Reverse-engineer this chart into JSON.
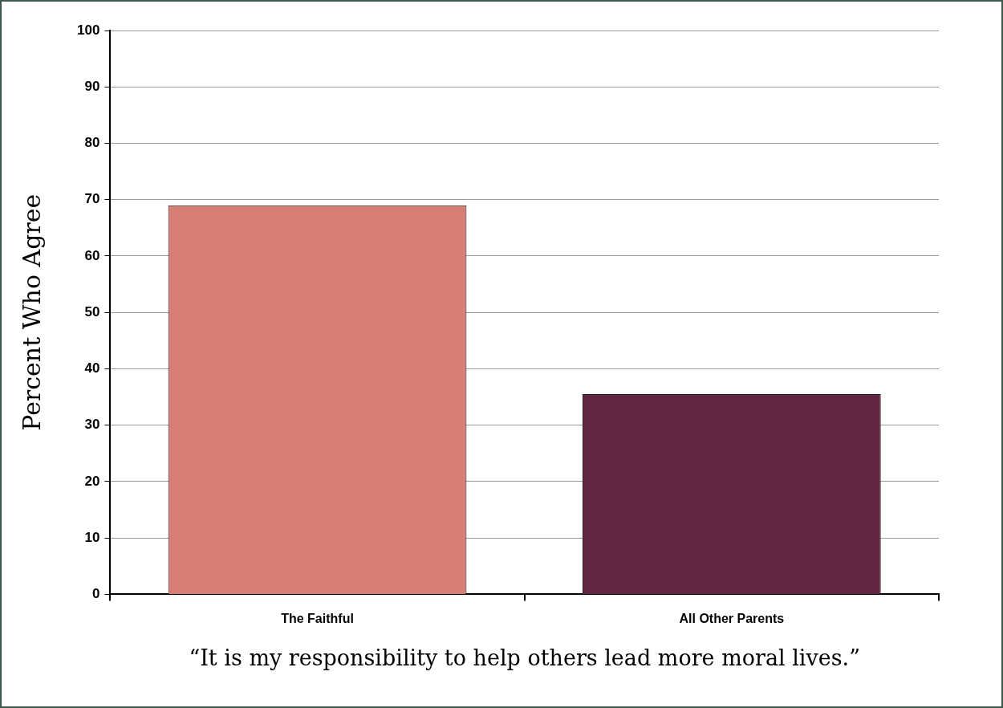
{
  "chart_data": {
    "type": "bar",
    "xlabel": "“It is my responsibility to help others lead more moral lives.”",
    "ylabel": "Percent Who Agree",
    "categories": [
      "The Faithful",
      "All Other Parents"
    ],
    "values": [
      69,
      35.5
    ],
    "colors": [
      "#d77f77",
      "#622640"
    ],
    "ylim": [
      0,
      100
    ],
    "yticks": [
      0,
      10,
      20,
      30,
      40,
      50,
      60,
      70,
      80,
      90,
      100
    ],
    "grid": "y"
  }
}
